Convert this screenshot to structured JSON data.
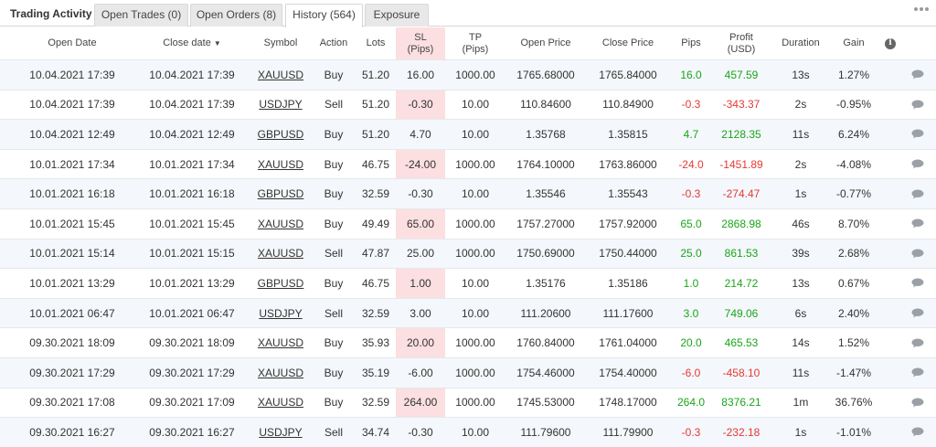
{
  "tabs": {
    "title": "Trading Activity",
    "items": [
      "Open Trades (0)",
      "Open Orders (8)",
      "History (564)",
      "Exposure"
    ],
    "active": "History (564)"
  },
  "columns": {
    "open_date": "Open Date",
    "close_date": "Close date",
    "sort_indicator": "▼",
    "symbol": "Symbol",
    "action": "Action",
    "lots": "Lots",
    "sl_1": "SL",
    "sl_2": "(Pips)",
    "tp_1": "TP",
    "tp_2": "(Pips)",
    "open_price": "Open Price",
    "close_price": "Close Price",
    "pips": "Pips",
    "profit_1": "Profit",
    "profit_2": "(USD)",
    "duration": "Duration",
    "gain": "Gain",
    "info_icon": "i"
  },
  "colors": {
    "positive": "#1aa51a",
    "negative": "#e53935",
    "sl_highlight": "#fcdfe0",
    "alt_row": "#f4f7fb"
  },
  "rows": [
    {
      "open": "10.04.2021 17:39",
      "close": "10.04.2021 17:39",
      "symbol": "XAUUSD",
      "action": "Buy",
      "lots": "51.20",
      "sl": "16.00",
      "tp": "1000.00",
      "open_price": "1765.68000",
      "close_price": "1765.84000",
      "pips": "16.0",
      "profit": "457.59",
      "duration": "13s",
      "gain": "1.27%",
      "sign": "pos"
    },
    {
      "open": "10.04.2021 17:39",
      "close": "10.04.2021 17:39",
      "symbol": "USDJPY",
      "action": "Sell",
      "lots": "51.20",
      "sl": "-0.30",
      "tp": "10.00",
      "open_price": "110.84600",
      "close_price": "110.84900",
      "pips": "-0.3",
      "profit": "-343.37",
      "duration": "2s",
      "gain": "-0.95%",
      "sign": "neg"
    },
    {
      "open": "10.04.2021 12:49",
      "close": "10.04.2021 12:49",
      "symbol": "GBPUSD",
      "action": "Buy",
      "lots": "51.20",
      "sl": "4.70",
      "tp": "10.00",
      "open_price": "1.35768",
      "close_price": "1.35815",
      "pips": "4.7",
      "profit": "2128.35",
      "duration": "11s",
      "gain": "6.24%",
      "sign": "pos"
    },
    {
      "open": "10.01.2021 17:34",
      "close": "10.01.2021 17:34",
      "symbol": "XAUUSD",
      "action": "Buy",
      "lots": "46.75",
      "sl": "-24.00",
      "tp": "1000.00",
      "open_price": "1764.10000",
      "close_price": "1763.86000",
      "pips": "-24.0",
      "profit": "-1451.89",
      "duration": "2s",
      "gain": "-4.08%",
      "sign": "neg"
    },
    {
      "open": "10.01.2021 16:18",
      "close": "10.01.2021 16:18",
      "symbol": "GBPUSD",
      "action": "Buy",
      "lots": "32.59",
      "sl": "-0.30",
      "tp": "10.00",
      "open_price": "1.35546",
      "close_price": "1.35543",
      "pips": "-0.3",
      "profit": "-274.47",
      "duration": "1s",
      "gain": "-0.77%",
      "sign": "neg"
    },
    {
      "open": "10.01.2021 15:45",
      "close": "10.01.2021 15:45",
      "symbol": "XAUUSD",
      "action": "Buy",
      "lots": "49.49",
      "sl": "65.00",
      "tp": "1000.00",
      "open_price": "1757.27000",
      "close_price": "1757.92000",
      "pips": "65.0",
      "profit": "2868.98",
      "duration": "46s",
      "gain": "8.70%",
      "sign": "pos"
    },
    {
      "open": "10.01.2021 15:14",
      "close": "10.01.2021 15:15",
      "symbol": "XAUUSD",
      "action": "Sell",
      "lots": "47.87",
      "sl": "25.00",
      "tp": "1000.00",
      "open_price": "1750.69000",
      "close_price": "1750.44000",
      "pips": "25.0",
      "profit": "861.53",
      "duration": "39s",
      "gain": "2.68%",
      "sign": "pos"
    },
    {
      "open": "10.01.2021 13:29",
      "close": "10.01.2021 13:29",
      "symbol": "GBPUSD",
      "action": "Buy",
      "lots": "46.75",
      "sl": "1.00",
      "tp": "10.00",
      "open_price": "1.35176",
      "close_price": "1.35186",
      "pips": "1.0",
      "profit": "214.72",
      "duration": "13s",
      "gain": "0.67%",
      "sign": "pos"
    },
    {
      "open": "10.01.2021 06:47",
      "close": "10.01.2021 06:47",
      "symbol": "USDJPY",
      "action": "Sell",
      "lots": "32.59",
      "sl": "3.00",
      "tp": "10.00",
      "open_price": "111.20600",
      "close_price": "111.17600",
      "pips": "3.0",
      "profit": "749.06",
      "duration": "6s",
      "gain": "2.40%",
      "sign": "pos"
    },
    {
      "open": "09.30.2021 18:09",
      "close": "09.30.2021 18:09",
      "symbol": "XAUUSD",
      "action": "Buy",
      "lots": "35.93",
      "sl": "20.00",
      "tp": "1000.00",
      "open_price": "1760.84000",
      "close_price": "1761.04000",
      "pips": "20.0",
      "profit": "465.53",
      "duration": "14s",
      "gain": "1.52%",
      "sign": "pos"
    },
    {
      "open": "09.30.2021 17:29",
      "close": "09.30.2021 17:29",
      "symbol": "XAUUSD",
      "action": "Buy",
      "lots": "35.19",
      "sl": "-6.00",
      "tp": "1000.00",
      "open_price": "1754.46000",
      "close_price": "1754.40000",
      "pips": "-6.0",
      "profit": "-458.10",
      "duration": "11s",
      "gain": "-1.47%",
      "sign": "neg"
    },
    {
      "open": "09.30.2021 17:08",
      "close": "09.30.2021 17:09",
      "symbol": "XAUUSD",
      "action": "Buy",
      "lots": "32.59",
      "sl": "264.00",
      "tp": "1000.00",
      "open_price": "1745.53000",
      "close_price": "1748.17000",
      "pips": "264.0",
      "profit": "8376.21",
      "duration": "1m",
      "gain": "36.76%",
      "sign": "pos"
    },
    {
      "open": "09.30.2021 16:27",
      "close": "09.30.2021 16:27",
      "symbol": "USDJPY",
      "action": "Sell",
      "lots": "34.74",
      "sl": "-0.30",
      "tp": "10.00",
      "open_price": "111.79600",
      "close_price": "111.79900",
      "pips": "-0.3",
      "profit": "-232.18",
      "duration": "1s",
      "gain": "-1.01%",
      "sign": "neg"
    }
  ]
}
